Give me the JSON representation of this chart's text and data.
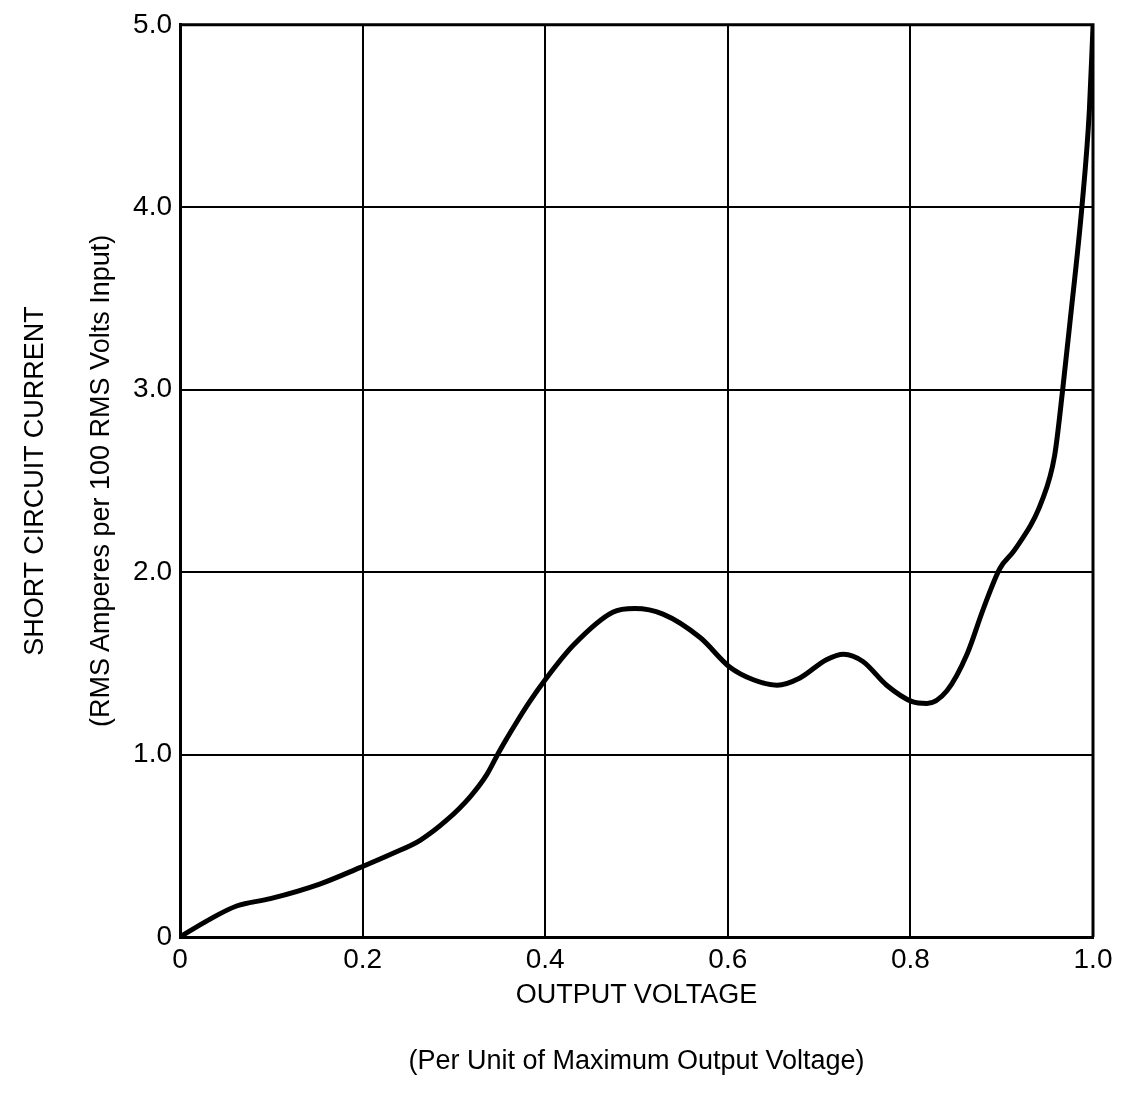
{
  "chart_data": {
    "type": "line",
    "xlabel": "OUTPUT VOLTAGE\n(Per Unit of Maximum Output Voltage)",
    "ylabel": "SHORT CIRCUIT CURRENT\n(RMS Amperes per 100 RMS Volts Input)",
    "xlim": [
      0,
      1
    ],
    "xticks": [
      0,
      0.2,
      0.4,
      0.6,
      0.8,
      {
        "value": 1,
        "label": "1.0"
      }
    ],
    "ylim": [
      0,
      5
    ],
    "yticks": [
      0,
      {
        "value": 1,
        "label": "1.0"
      },
      {
        "value": 2,
        "label": "2.0"
      },
      {
        "value": 3,
        "label": "3.0"
      },
      {
        "value": 4,
        "label": "4.0"
      },
      {
        "value": 5,
        "label": "5.0"
      }
    ],
    "grid": true,
    "legend": false,
    "marker": "none",
    "line_style": "solid",
    "series": [
      {
        "color": "#000000",
        "x": [
          0,
          0.03,
          0.062,
          0.099,
          0.153,
          0.197,
          0.234,
          0.263,
          0.292,
          0.318,
          0.336,
          0.35,
          0.369,
          0.383,
          0.4,
          0.431,
          0.474,
          0.498,
          0.529,
          0.57,
          0.602,
          0.628,
          0.654,
          0.679,
          0.708,
          0.727,
          0.748,
          0.774,
          0.802,
          0.818,
          0.84,
          0.862,
          0.88,
          0.898,
          0.914,
          0.944,
          0.958,
          0.967,
          0.975,
          0.988,
          0.996,
          1.0
        ],
        "values": [
          0,
          0.09,
          0.17,
          0.21,
          0.29,
          0.38,
          0.46,
          0.53,
          0.64,
          0.77,
          0.89,
          1.02,
          1.18,
          1.29,
          1.41,
          1.6,
          1.78,
          1.8,
          1.77,
          1.64,
          1.48,
          1.41,
          1.38,
          1.42,
          1.52,
          1.55,
          1.51,
          1.38,
          1.29,
          1.28,
          1.35,
          1.55,
          1.8,
          2.02,
          2.12,
          2.39,
          2.64,
          3.01,
          3.38,
          4.01,
          4.53,
          4.99
        ]
      }
    ]
  }
}
